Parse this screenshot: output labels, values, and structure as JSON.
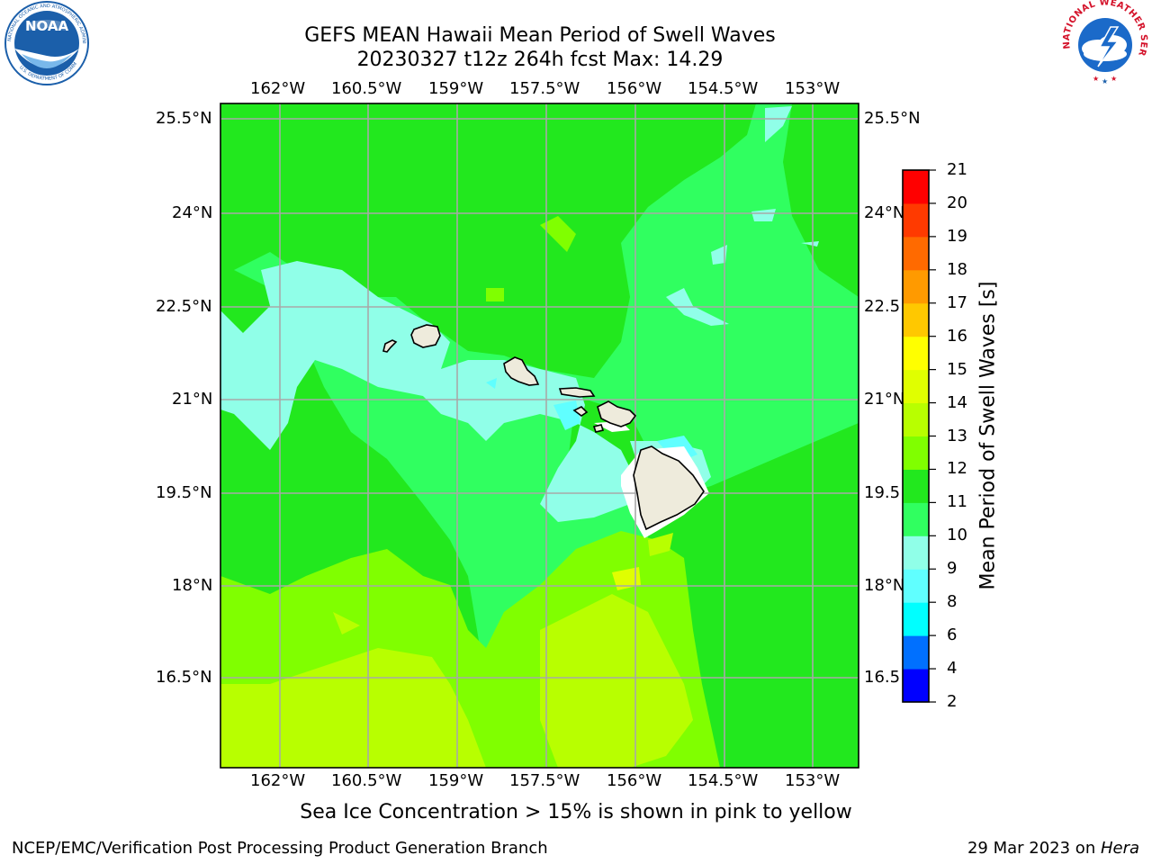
{
  "title": {
    "line1": "GEFS MEAN Hawaii Mean Period of Swell Waves",
    "line2": "20230327 t12z 264h fcst   Max: 14.29"
  },
  "logos": {
    "left": {
      "name": "noaa-logo",
      "text": "NOAA",
      "ring_text": "NATIONAL OCEANIC AND ATMOSPHERIC ADMINISTRATION",
      "ring_text_bottom": "U.S. DEPARTMENT OF COMMERCE",
      "color": "#1b5faa"
    },
    "right": {
      "name": "nws-logo",
      "ring_text": "NATIONAL WEATHER SERVICE",
      "color": "#d4122a"
    }
  },
  "map": {
    "lon_labels": [
      "162°W",
      "160.5°W",
      "159°W",
      "157.5°W",
      "156°W",
      "154.5°W",
      "153°W"
    ],
    "lat_labels_left": [
      "25.5°N",
      "24°N",
      "22.5°N",
      "21°N",
      "19.5°N",
      "18°N",
      "16.5°N"
    ],
    "lat_labels_right": [
      "25.5°N",
      "24°N",
      "22.5",
      "21°N",
      "19.5",
      "18°N",
      "16.5"
    ],
    "colors": {
      "grid": "#a8a8a8",
      "land": "#eeebdc",
      "coast": "#000000",
      "no_data": "#ffffff"
    }
  },
  "colorbar": {
    "label": "Mean Period of Swell Waves [s]",
    "ticks": [
      "2",
      "4",
      "6",
      "8",
      "9",
      "10",
      "11",
      "12",
      "13",
      "14",
      "15",
      "16",
      "17",
      "18",
      "19",
      "20",
      "21"
    ],
    "bins": [
      {
        "from": 2,
        "to": 4,
        "color": "#0000ff"
      },
      {
        "from": 4,
        "to": 6,
        "color": "#0070ff"
      },
      {
        "from": 6,
        "to": 8,
        "color": "#00ffff"
      },
      {
        "from": 8,
        "to": 9,
        "color": "#60ffff"
      },
      {
        "from": 9,
        "to": 10,
        "color": "#90ffe8"
      },
      {
        "from": 10,
        "to": 11,
        "color": "#30ff60"
      },
      {
        "from": 11,
        "to": 12,
        "color": "#22e81e"
      },
      {
        "from": 12,
        "to": 13,
        "color": "#80ff00"
      },
      {
        "from": 13,
        "to": 14,
        "color": "#b8ff00"
      },
      {
        "from": 14,
        "to": 15,
        "color": "#e0ff00"
      },
      {
        "from": 15,
        "to": 16,
        "color": "#ffff00"
      },
      {
        "from": 16,
        "to": 17,
        "color": "#ffc800"
      },
      {
        "from": 17,
        "to": 18,
        "color": "#ff9a00"
      },
      {
        "from": 18,
        "to": 19,
        "color": "#ff6a00"
      },
      {
        "from": 19,
        "to": 20,
        "color": "#ff3a00"
      },
      {
        "from": 20,
        "to": 21,
        "color": "#ff0000"
      }
    ]
  },
  "footnote": "Sea Ice Concentration > 15% is shown in pink to yellow",
  "credit": "NCEP/EMC/Verification Post Processing Product Generation Branch",
  "stamp": {
    "date": "29 Mar 2023 on ",
    "host": "Hera"
  }
}
